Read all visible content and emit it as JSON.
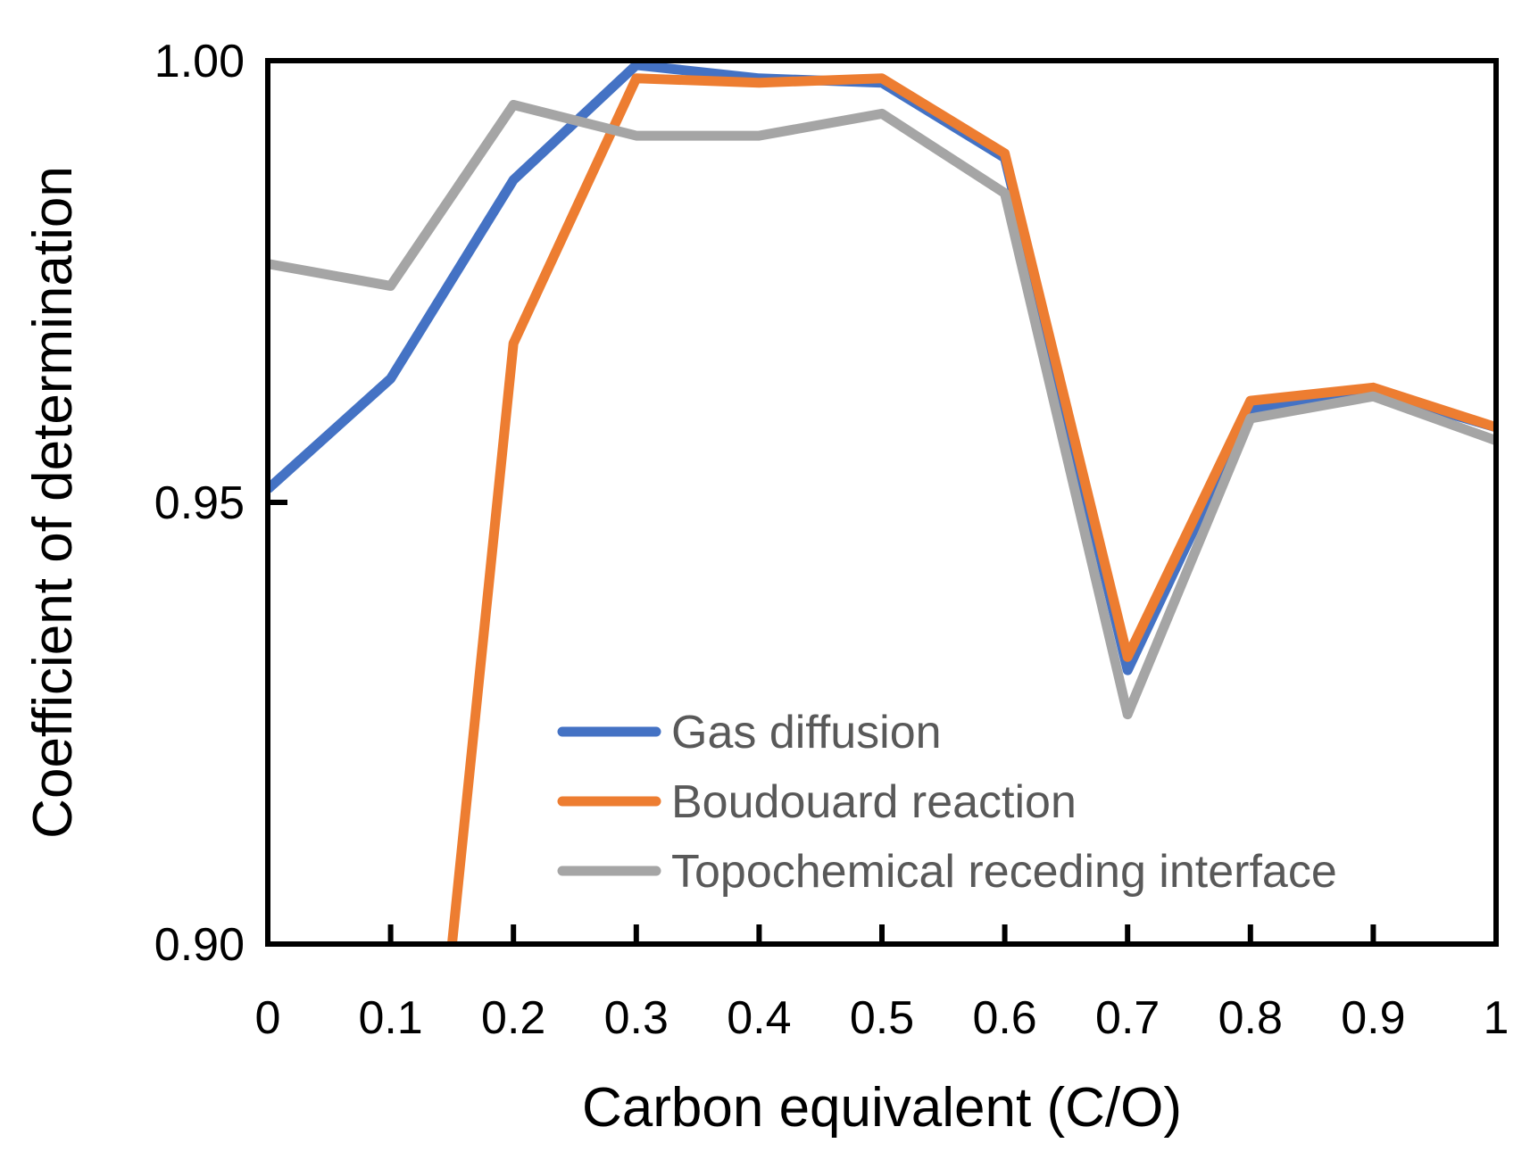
{
  "chart_data": {
    "type": "line",
    "title": "",
    "xlabel": "Carbon equivalent (C/O)",
    "ylabel": "Coefficient of determination",
    "xlim": [
      0,
      1
    ],
    "ylim": [
      0.9,
      1.0
    ],
    "x": [
      0,
      0.1,
      0.2,
      0.3,
      0.4,
      0.5,
      0.6,
      0.7,
      0.8,
      0.9,
      1
    ],
    "xticks": [
      "0",
      "0.1",
      "0.2",
      "0.3",
      "0.4",
      "0.5",
      "0.6",
      "0.7",
      "0.8",
      "0.9",
      "1"
    ],
    "yticks": [
      "1.00",
      "0.95",
      "0.90"
    ],
    "ytick_values": [
      1.0,
      0.95,
      0.9
    ],
    "grid": false,
    "legend_position": "bottom-right",
    "series": [
      {
        "name": "Gas diffusion",
        "color": "#4472C4",
        "values": [
          0.9515,
          0.964,
          0.9865,
          0.9995,
          0.998,
          0.9975,
          0.989,
          0.931,
          0.9605,
          0.9625,
          0.9585
        ]
      },
      {
        "name": "Boudouard reaction",
        "color": "#ED7D31",
        "points": [
          [
            0.15,
            0.9
          ],
          [
            0.2,
            0.968
          ],
          [
            0.3,
            0.998
          ],
          [
            0.4,
            0.9975
          ],
          [
            0.5,
            0.998
          ],
          [
            0.6,
            0.9895
          ],
          [
            0.7,
            0.9325
          ],
          [
            0.8,
            0.9615
          ],
          [
            0.9,
            0.963
          ],
          [
            1,
            0.9585
          ]
        ]
      },
      {
        "name": "Topochemical receding interface",
        "color": "#A5A5A5",
        "values": [
          0.977,
          0.9745,
          0.995,
          0.9915,
          0.9915,
          0.994,
          0.985,
          0.926,
          0.9595,
          0.962,
          0.957
        ]
      }
    ]
  }
}
